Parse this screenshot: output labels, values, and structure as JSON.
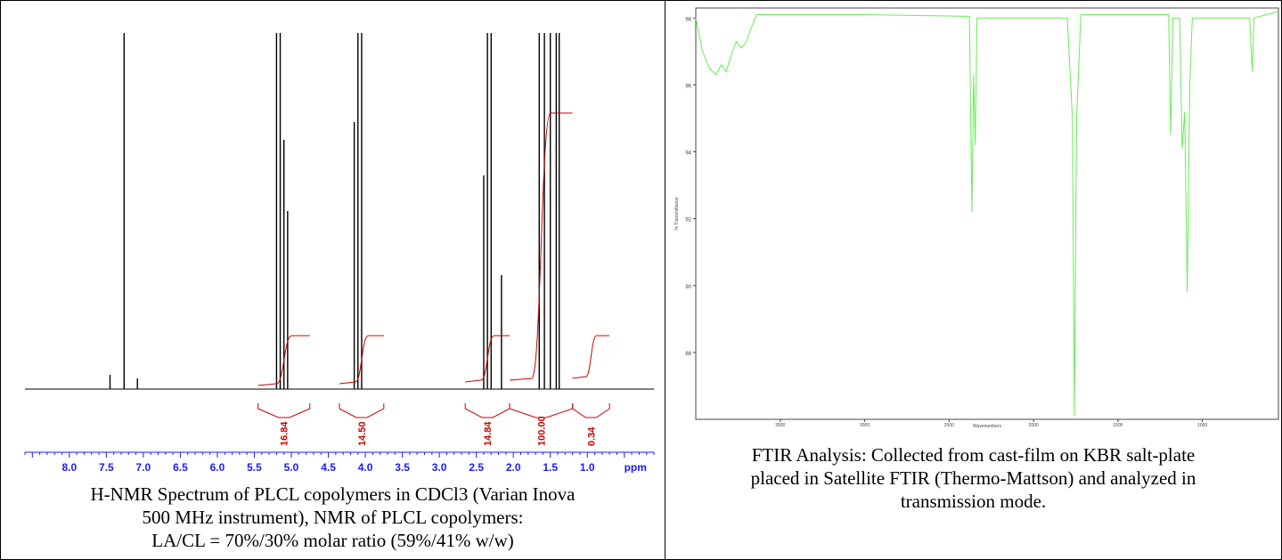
{
  "nmr_panel": {
    "caption_line1": "H-NMR Spectrum of PLCL copolymers in CDCl3 (Varian Inova",
    "caption_line2": "500 MHz instrument), NMR of PLCL copolymers:",
    "caption_line3": "LA/CL = 70%/30% molar ratio (59%/41% w/w)",
    "colors": {
      "spectrum": "#000000",
      "integral": "#cc0000",
      "axis": "#1a1aff",
      "peak_marker": "#00bb00"
    }
  },
  "ftir_panel": {
    "caption_line1": "FTIR Analysis: Collected from cast-film on KBR salt-plate",
    "caption_line2": "placed in Satellite FTIR (Thermo-Mattson) and analyzed in",
    "caption_line3": "transmission mode.",
    "colors": {
      "spectrum": "#66ee55"
    }
  },
  "chart_data": [
    {
      "type": "line",
      "title": "",
      "xlabel": "ppm",
      "ylabel": "",
      "xlim": [
        8.6,
        0.1
      ],
      "x_reversed": true,
      "x_ticks": [
        "8.0",
        "7.5",
        "7.0",
        "6.5",
        "6.0",
        "5.5",
        "5.0",
        "4.5",
        "4.0",
        "3.5",
        "3.0",
        "2.5",
        "2.0",
        "1.5",
        "1.0"
      ],
      "x_tick_values": [
        8.0,
        7.5,
        7.0,
        6.5,
        6.0,
        5.5,
        5.0,
        4.5,
        4.0,
        3.5,
        3.0,
        2.5,
        2.0,
        1.5,
        1.0
      ],
      "peaks": [
        {
          "ppm": 7.26,
          "height": 1.0
        },
        {
          "ppm": 7.45,
          "height": 0.04
        },
        {
          "ppm": 7.08,
          "height": 0.03
        },
        {
          "ppm": 5.2,
          "height": 1.0
        },
        {
          "ppm": 5.15,
          "height": 1.0
        },
        {
          "ppm": 5.1,
          "height": 0.7
        },
        {
          "ppm": 5.05,
          "height": 0.5
        },
        {
          "ppm": 4.15,
          "height": 0.75
        },
        {
          "ppm": 4.1,
          "height": 1.0
        },
        {
          "ppm": 4.05,
          "height": 1.0
        },
        {
          "ppm": 2.4,
          "height": 0.6
        },
        {
          "ppm": 2.35,
          "height": 1.0
        },
        {
          "ppm": 2.3,
          "height": 1.0
        },
        {
          "ppm": 2.16,
          "height": 0.32
        },
        {
          "ppm": 1.65,
          "height": 1.0
        },
        {
          "ppm": 1.58,
          "height": 1.0
        },
        {
          "ppm": 1.5,
          "height": 1.0
        },
        {
          "ppm": 1.42,
          "height": 1.0
        },
        {
          "ppm": 1.38,
          "height": 1.0
        }
      ],
      "integrals": [
        {
          "label": "16.84",
          "from": 5.45,
          "to": 4.75
        },
        {
          "label": "14.50",
          "from": 4.35,
          "to": 3.75
        },
        {
          "label": "14.84",
          "from": 2.65,
          "to": 2.05
        },
        {
          "label": "100.00",
          "from": 2.05,
          "to": 1.2
        },
        {
          "label": "0.34",
          "from": 1.2,
          "to": 0.7
        }
      ]
    },
    {
      "type": "line",
      "title": "",
      "xlabel": "Wavenumbers",
      "ylabel": "% Transmittance",
      "xlim": [
        4000,
        550
      ],
      "x_reversed": true,
      "ylim": [
        86,
        98.3
      ],
      "x_ticks": [
        "3500",
        "3000",
        "2500",
        "2000",
        "1500",
        "1000"
      ],
      "x_tick_values": [
        3500,
        3000,
        2500,
        2000,
        1500,
        1000
      ],
      "y_ticks": [
        "98",
        "96",
        "94",
        "92",
        "90",
        "88"
      ],
      "y_tick_values": [
        98,
        96,
        94,
        92,
        90,
        88
      ],
      "points": [
        [
          4000,
          98.0
        ],
        [
          3960,
          97.0
        ],
        [
          3920,
          96.5
        ],
        [
          3880,
          96.3
        ],
        [
          3850,
          96.6
        ],
        [
          3820,
          96.4
        ],
        [
          3790,
          96.9
        ],
        [
          3760,
          97.3
        ],
        [
          3730,
          97.1
        ],
        [
          3700,
          97.3
        ],
        [
          3680,
          97.6
        ],
        [
          3640,
          98.1
        ],
        [
          3000,
          98.1
        ],
        [
          2380,
          98.05
        ],
        [
          2365,
          92.2
        ],
        [
          2355,
          96.3
        ],
        [
          2345,
          94.2
        ],
        [
          2335,
          98.0
        ],
        [
          1800,
          98.0
        ],
        [
          1770,
          95.0
        ],
        [
          1758,
          86.1
        ],
        [
          1745,
          95.0
        ],
        [
          1720,
          98.1
        ],
        [
          1200,
          98.1
        ],
        [
          1188,
          94.5
        ],
        [
          1175,
          98.0
        ],
        [
          1135,
          98.0
        ],
        [
          1120,
          94.1
        ],
        [
          1105,
          95.2
        ],
        [
          1090,
          89.8
        ],
        [
          1075,
          96.0
        ],
        [
          1060,
          98.0
        ],
        [
          720,
          98.0
        ],
        [
          705,
          96.4
        ],
        [
          695,
          98.0
        ],
        [
          550,
          98.2
        ]
      ]
    }
  ]
}
